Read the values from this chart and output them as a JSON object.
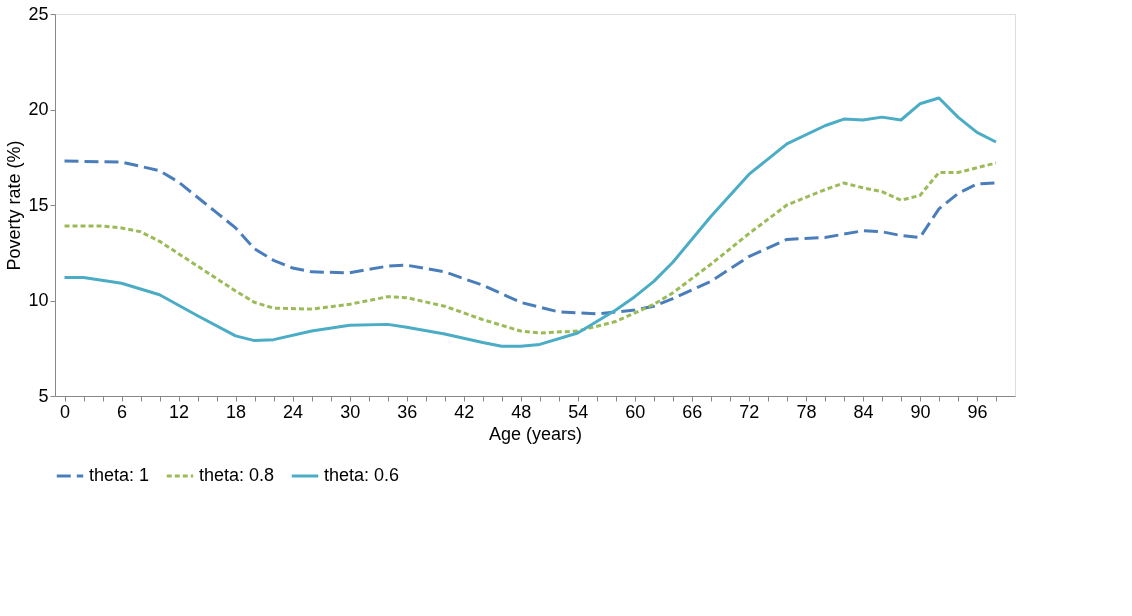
{
  "chart_data": {
    "type": "line",
    "xlabel": "Age (years)",
    "ylabel": "Poverty rate (%)",
    "xlim": [
      -1,
      100
    ],
    "ylim": [
      5,
      25
    ],
    "yticks": [
      5,
      10,
      15,
      20,
      25
    ],
    "xticks": [
      0,
      {
        "value": 2,
        "label": null
      },
      {
        "value": 4,
        "label": null
      },
      6,
      {
        "value": 8,
        "label": null
      },
      {
        "value": 10,
        "label": null
      },
      12,
      {
        "value": 14,
        "label": null
      },
      {
        "value": 16,
        "label": null
      },
      18,
      {
        "value": 20,
        "label": null
      },
      {
        "value": 22,
        "label": null
      },
      24,
      {
        "value": 26,
        "label": null
      },
      {
        "value": 28,
        "label": null
      },
      30,
      {
        "value": 32,
        "label": null
      },
      {
        "value": 34,
        "label": null
      },
      36,
      {
        "value": 38,
        "label": null
      },
      {
        "value": 40,
        "label": null
      },
      42,
      {
        "value": 44,
        "label": null
      },
      {
        "value": 46,
        "label": null
      },
      48,
      {
        "value": 50,
        "label": null
      },
      {
        "value": 52,
        "label": null
      },
      54,
      {
        "value": 56,
        "label": null
      },
      {
        "value": 58,
        "label": null
      },
      60,
      {
        "value": 62,
        "label": null
      },
      {
        "value": 64,
        "label": null
      },
      66,
      {
        "value": 68,
        "label": null
      },
      {
        "value": 70,
        "label": null
      },
      72,
      {
        "value": 74,
        "label": null
      },
      {
        "value": 76,
        "label": null
      },
      78,
      {
        "value": 80,
        "label": null
      },
      {
        "value": 82,
        "label": null
      },
      84,
      {
        "value": 86,
        "label": null
      },
      {
        "value": 88,
        "label": null
      },
      90,
      {
        "value": 92,
        "label": null
      },
      {
        "value": 94,
        "label": null
      },
      96,
      {
        "value": 98,
        "label": null
      }
    ],
    "grid": false,
    "legend": "bottom",
    "marker": "none",
    "series": [
      {
        "name": "theta: 1",
        "color": "#4a7ebb",
        "line_style": "dashed",
        "x": [
          0,
          6,
          10,
          12,
          16,
          18,
          20,
          22,
          24,
          26,
          30,
          34,
          36,
          40,
          44,
          48,
          52,
          56,
          60,
          62,
          64,
          68,
          72,
          76,
          80,
          84,
          86,
          88,
          90,
          92,
          94,
          96,
          98
        ],
        "values": [
          17.3,
          17.25,
          16.8,
          16.2,
          14.6,
          13.8,
          12.7,
          12.1,
          11.7,
          11.5,
          11.45,
          11.8,
          11.85,
          11.5,
          10.8,
          9.9,
          9.4,
          9.3,
          9.5,
          9.7,
          10.1,
          11.0,
          12.3,
          13.2,
          13.3,
          13.65,
          13.6,
          13.4,
          13.3,
          14.8,
          15.6,
          16.1,
          16.15
        ]
      },
      {
        "name": "theta: 0.8",
        "color": "#9bbb59",
        "line_style": "dashed",
        "x": [
          0,
          4,
          6,
          8,
          10,
          14,
          18,
          20,
          22,
          26,
          30,
          34,
          36,
          40,
          44,
          48,
          50,
          54,
          58,
          62,
          64,
          68,
          72,
          76,
          80,
          82,
          84,
          86,
          88,
          90,
          92,
          94,
          98
        ],
        "values": [
          13.9,
          13.9,
          13.8,
          13.6,
          13.1,
          11.8,
          10.5,
          9.9,
          9.6,
          9.55,
          9.8,
          10.2,
          10.15,
          9.7,
          9.0,
          8.4,
          8.3,
          8.4,
          8.9,
          9.8,
          10.4,
          11.9,
          13.5,
          15.0,
          15.8,
          16.15,
          15.9,
          15.7,
          15.25,
          15.5,
          16.7,
          16.7,
          17.2
        ]
      },
      {
        "name": "theta: 0.6",
        "color": "#4bacc6",
        "line_style": "solid",
        "x": [
          0,
          2,
          6,
          10,
          14,
          18,
          20,
          22,
          26,
          30,
          34,
          36,
          40,
          44,
          46,
          48,
          50,
          54,
          58,
          60,
          62,
          64,
          68,
          72,
          76,
          80,
          82,
          84,
          86,
          88,
          90,
          92,
          94,
          96,
          98
        ],
        "values": [
          11.2,
          11.2,
          10.9,
          10.3,
          9.2,
          8.15,
          7.9,
          7.95,
          8.4,
          8.7,
          8.75,
          8.6,
          8.25,
          7.8,
          7.6,
          7.6,
          7.7,
          8.3,
          9.5,
          10.2,
          11.0,
          12.0,
          14.4,
          16.6,
          18.2,
          19.15,
          19.5,
          19.45,
          19.6,
          19.45,
          20.3,
          20.6,
          19.6,
          18.8,
          18.3
        ]
      }
    ]
  }
}
